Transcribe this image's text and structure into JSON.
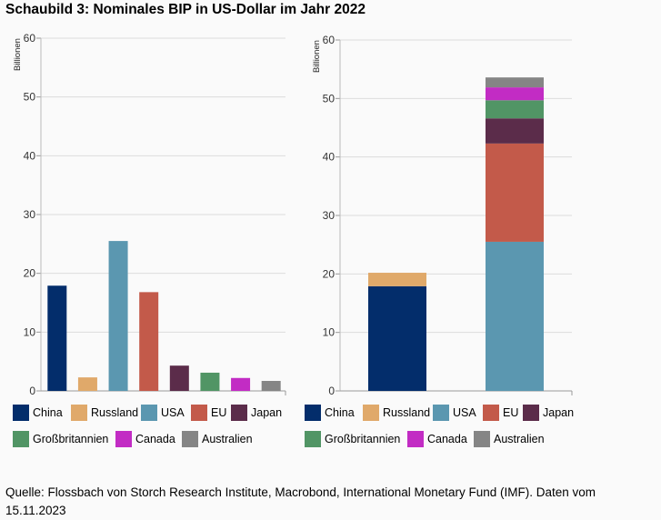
{
  "title": "Schaubild 3: Nominales BIP in US-Dollar im Jahr 2022",
  "source": "Quelle: Flossbach von Storch Research Institute, Macrobond, International Monetary Fund (IMF). Daten vom 15.11.2023",
  "colors": {
    "China": "#032d6b",
    "Russland": "#e0a96a",
    "USA": "#5b97b0",
    "EU": "#c35a4a",
    "Japan": "#5b2c4a",
    "Großbritannien": "#519565",
    "Canada": "#c22cc4",
    "Australien": "#858585"
  },
  "chart_data": [
    {
      "type": "bar",
      "ylabel": "Billionen",
      "ylim": [
        0,
        60
      ],
      "yticks": [
        0,
        10,
        20,
        30,
        40,
        50,
        60
      ],
      "grid": true,
      "categories": [
        "China",
        "Russland",
        "USA",
        "EU",
        "Japan",
        "Großbritannien",
        "Canada",
        "Australien"
      ],
      "values": [
        17.9,
        2.3,
        25.5,
        16.8,
        4.3,
        3.1,
        2.2,
        1.7
      ],
      "legend": [
        "China",
        "Russland",
        "USA",
        "EU",
        "Japan",
        "Großbritannien",
        "Canada",
        "Australien"
      ]
    },
    {
      "type": "bar",
      "stacked": true,
      "ylabel": "Billionen",
      "ylim": [
        0,
        60
      ],
      "yticks": [
        0,
        10,
        20,
        30,
        40,
        50,
        60
      ],
      "grid": true,
      "stacks": [
        {
          "segments": [
            {
              "name": "China",
              "value": 17.9
            },
            {
              "name": "Russland",
              "value": 2.3
            }
          ]
        },
        {
          "segments": [
            {
              "name": "USA",
              "value": 25.5
            },
            {
              "name": "EU",
              "value": 16.8
            },
            {
              "name": "Japan",
              "value": 4.3
            },
            {
              "name": "Großbritannien",
              "value": 3.1
            },
            {
              "name": "Canada",
              "value": 2.2
            },
            {
              "name": "Australien",
              "value": 1.7
            }
          ]
        }
      ],
      "legend": [
        "China",
        "Russland",
        "USA",
        "EU",
        "Japan",
        "Großbritannien",
        "Canada",
        "Australien"
      ]
    }
  ]
}
